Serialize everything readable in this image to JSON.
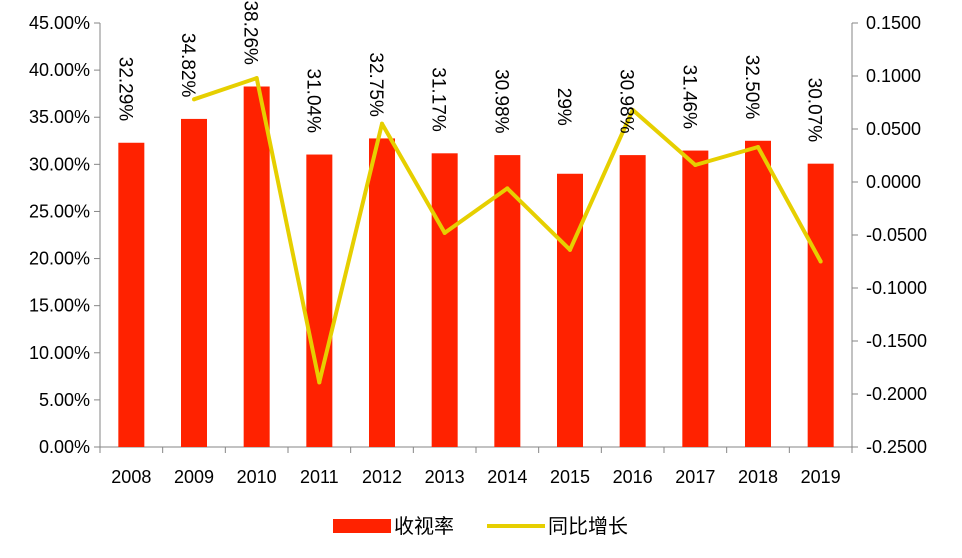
{
  "chart_data": {
    "type": "bar+line",
    "categories": [
      "2008",
      "2009",
      "2010",
      "2011",
      "2012",
      "2013",
      "2014",
      "2015",
      "2016",
      "2017",
      "2018",
      "2019"
    ],
    "series": [
      {
        "name": "收视率",
        "type": "bar",
        "axis": "left",
        "color": "#ff2200",
        "values": [
          32.29,
          34.82,
          38.26,
          31.04,
          32.75,
          31.17,
          30.98,
          29.0,
          30.98,
          31.46,
          32.5,
          30.07
        ],
        "labels": [
          "32.29%",
          "34.82%",
          "38.26%",
          "31.04%",
          "32.75%",
          "31.17%",
          "30.98%",
          "29%",
          "30.98%",
          "31.46%",
          "32.50%",
          "30.07%"
        ]
      },
      {
        "name": "同比增长",
        "type": "line",
        "axis": "right",
        "color": "#e6cf00",
        "values": [
          null,
          0.078,
          0.098,
          -0.189,
          0.055,
          -0.048,
          -0.006,
          -0.064,
          0.068,
          0.016,
          0.033,
          -0.075
        ]
      }
    ],
    "yleft": {
      "min": 0,
      "max": 45,
      "step": 5,
      "ticks": [
        "0.00%",
        "5.00%",
        "10.00%",
        "15.00%",
        "20.00%",
        "25.00%",
        "30.00%",
        "35.00%",
        "40.00%",
        "45.00%"
      ]
    },
    "yright": {
      "min": -0.25,
      "max": 0.15,
      "step": 0.05,
      "ticks": [
        "-0.2500",
        "-0.2000",
        "-0.1500",
        "-0.1000",
        "-0.0500",
        "0.0000",
        "0.0500",
        "0.1000",
        "0.1500"
      ]
    },
    "grid": false,
    "legend": "bottom-center",
    "title": "",
    "xlabel": "",
    "ylabel": ""
  }
}
